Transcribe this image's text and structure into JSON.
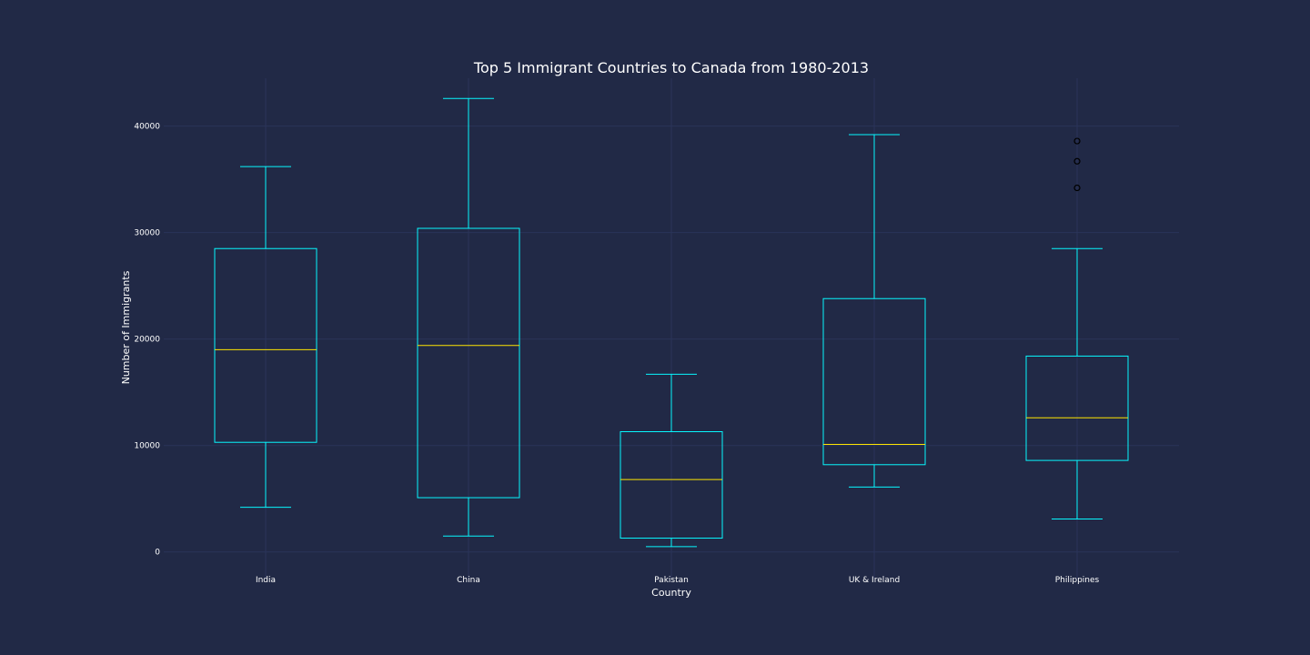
{
  "colors": {
    "background": "#212946",
    "grid": "#2a3459",
    "box": "#08F7FE",
    "median": "#FFE600",
    "flier": "#000000",
    "text": "#ffffff"
  },
  "chart_data": {
    "type": "box",
    "title": "Top 5 Immigrant Countries to Canada from 1980-2013",
    "xlabel": "Country",
    "ylabel": "Number of Immigrants",
    "ylim": [
      -2500,
      44500
    ],
    "yticks": [
      0,
      10000,
      20000,
      30000,
      40000
    ],
    "ytick_labels": [
      "0",
      "10000",
      "20000",
      "30000",
      "40000"
    ],
    "grid": true,
    "series": [
      {
        "category": "India",
        "whisker_low": 4200,
        "q1": 10300,
        "median": 19000,
        "q3": 28500,
        "whisker_high": 36200,
        "fliers": []
      },
      {
        "category": "China",
        "whisker_low": 1500,
        "q1": 5100,
        "median": 19400,
        "q3": 30400,
        "whisker_high": 42600,
        "fliers": []
      },
      {
        "category": "Pakistan",
        "whisker_low": 500,
        "q1": 1300,
        "median": 6800,
        "q3": 11300,
        "whisker_high": 16700,
        "fliers": []
      },
      {
        "category": "UK & Ireland",
        "whisker_low": 6100,
        "q1": 8200,
        "median": 10100,
        "q3": 23800,
        "whisker_high": 39200,
        "fliers": []
      },
      {
        "category": "Philippines",
        "whisker_low": 3100,
        "q1": 8600,
        "median": 12600,
        "q3": 18400,
        "whisker_high": 28500,
        "fliers": [
          34200,
          36700,
          38600
        ]
      }
    ]
  }
}
